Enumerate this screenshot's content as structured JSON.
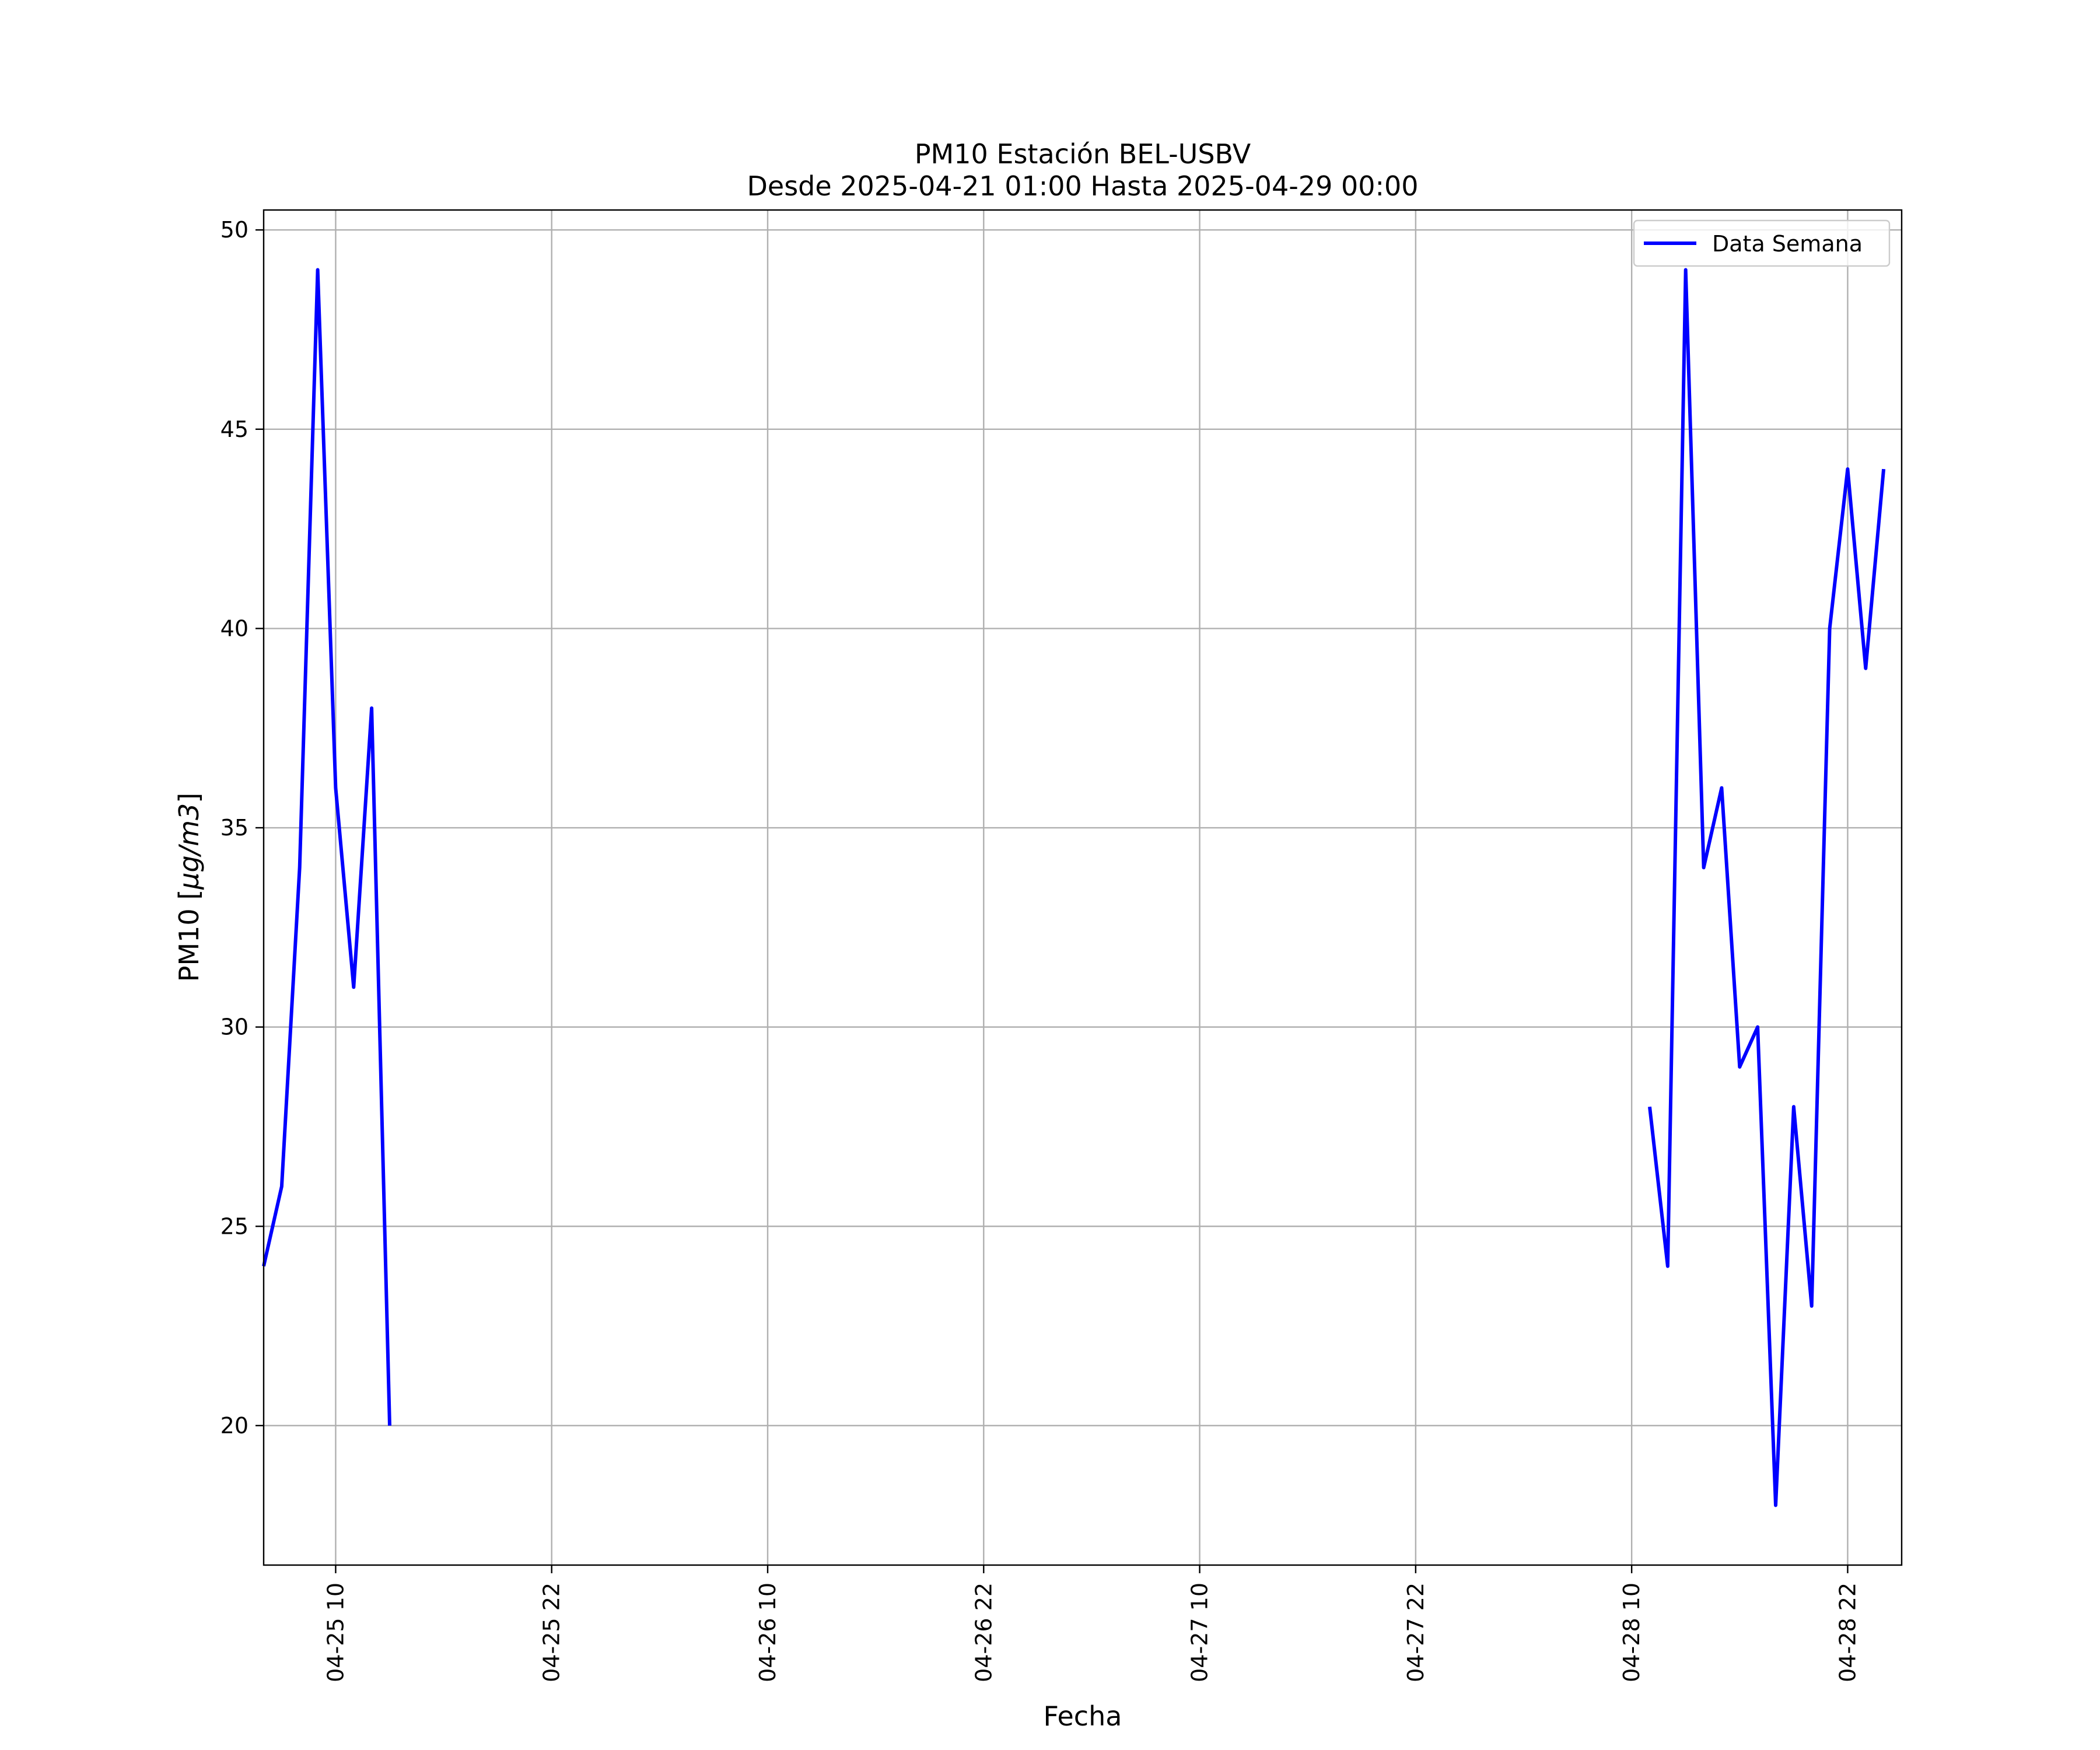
{
  "chart_data": {
    "type": "line",
    "title": "PM10 Estación BEL-USBV",
    "subtitle": "Desde 2025-04-21 01:00 Hasta 2025-04-29 00:00",
    "xlabel": "Fecha",
    "ylabel": "PM10 [µg/m3]",
    "ylabel_unit": "µg/m3",
    "xlim": [
      "2025-04-25 06:00",
      "2025-04-29 01:00"
    ],
    "ylim": [
      16.5,
      50.5
    ],
    "grid": true,
    "legend_position": "top-right",
    "x_ticks": [
      {
        "value": "2025-04-25 10:00",
        "label": "04-25 10"
      },
      {
        "value": "2025-04-25 22:00",
        "label": "04-25 22"
      },
      {
        "value": "2025-04-26 10:00",
        "label": "04-26 10"
      },
      {
        "value": "2025-04-26 22:00",
        "label": "04-26 22"
      },
      {
        "value": "2025-04-27 10:00",
        "label": "04-27 10"
      },
      {
        "value": "2025-04-27 22:00",
        "label": "04-27 22"
      },
      {
        "value": "2025-04-28 10:00",
        "label": "04-28 10"
      },
      {
        "value": "2025-04-28 22:00",
        "label": "04-28 22"
      }
    ],
    "y_ticks": [
      {
        "value": 20,
        "label": "20"
      },
      {
        "value": 25,
        "label": "25"
      },
      {
        "value": 30,
        "label": "30"
      },
      {
        "value": 35,
        "label": "35"
      },
      {
        "value": 40,
        "label": "40"
      },
      {
        "value": 45,
        "label": "45"
      },
      {
        "value": 50,
        "label": "50"
      }
    ],
    "series": [
      {
        "name": "Data Semana",
        "color": "#0000ff",
        "segments": [
          [
            {
              "x": "2025-04-25 06:00",
              "y": 24
            },
            {
              "x": "2025-04-25 07:00",
              "y": 26
            },
            {
              "x": "2025-04-25 08:00",
              "y": 34
            },
            {
              "x": "2025-04-25 09:00",
              "y": 49
            },
            {
              "x": "2025-04-25 10:00",
              "y": 36
            },
            {
              "x": "2025-04-25 11:00",
              "y": 31
            },
            {
              "x": "2025-04-25 12:00",
              "y": 38
            },
            {
              "x": "2025-04-25 13:00",
              "y": 20
            }
          ],
          [
            {
              "x": "2025-04-28 11:00",
              "y": 28
            },
            {
              "x": "2025-04-28 12:00",
              "y": 24
            },
            {
              "x": "2025-04-28 13:00",
              "y": 49
            },
            {
              "x": "2025-04-28 14:00",
              "y": 34
            },
            {
              "x": "2025-04-28 15:00",
              "y": 36
            },
            {
              "x": "2025-04-28 16:00",
              "y": 29
            },
            {
              "x": "2025-04-28 17:00",
              "y": 30
            },
            {
              "x": "2025-04-28 18:00",
              "y": 18
            },
            {
              "x": "2025-04-28 19:00",
              "y": 28
            },
            {
              "x": "2025-04-28 20:00",
              "y": 23
            },
            {
              "x": "2025-04-28 21:00",
              "y": 40
            },
            {
              "x": "2025-04-28 22:00",
              "y": 44
            },
            {
              "x": "2025-04-28 23:00",
              "y": 39
            },
            {
              "x": "2025-04-29 00:00",
              "y": 44
            }
          ]
        ]
      }
    ]
  }
}
